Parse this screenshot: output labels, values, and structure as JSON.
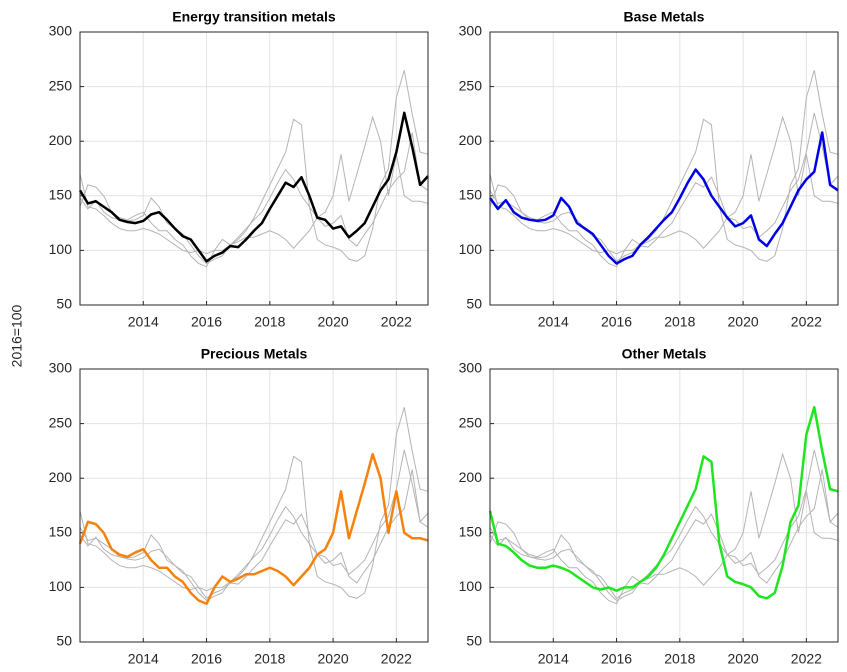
{
  "y_label": "2016=100",
  "chart_data": [
    {
      "type": "line",
      "title": "Energy transition metals",
      "color": "#000000",
      "x": [
        2012,
        2012.25,
        2012.5,
        2012.75,
        2013,
        2013.25,
        2013.5,
        2013.75,
        2014,
        2014.25,
        2014.5,
        2014.75,
        2015,
        2015.25,
        2015.5,
        2015.75,
        2016,
        2016.25,
        2016.5,
        2016.75,
        2017,
        2017.25,
        2017.5,
        2017.75,
        2018,
        2018.25,
        2018.5,
        2018.75,
        2019,
        2019.25,
        2019.5,
        2019.75,
        2020,
        2020.25,
        2020.5,
        2020.75,
        2021,
        2021.25,
        2021.5,
        2021.75,
        2022,
        2022.25,
        2022.5,
        2022.75,
        2023
      ],
      "values": [
        155,
        143,
        145,
        140,
        135,
        128,
        126,
        125,
        127,
        133,
        135,
        128,
        120,
        113,
        110,
        100,
        90,
        95,
        98,
        104,
        103,
        110,
        118,
        125,
        138,
        150,
        162,
        158,
        167,
        150,
        130,
        128,
        120,
        122,
        112,
        118,
        125,
        140,
        155,
        165,
        190,
        226,
        195,
        160,
        168
      ],
      "xlim": [
        2012,
        2023
      ],
      "xticks": [
        2014,
        2016,
        2018,
        2020,
        2022
      ],
      "ylim": [
        50,
        300
      ],
      "yticks": [
        50,
        100,
        150,
        200,
        250,
        300
      ],
      "grid": true
    },
    {
      "type": "line",
      "title": "Base Metals",
      "color": "#0000e6",
      "x": [
        2012,
        2012.25,
        2012.5,
        2012.75,
        2013,
        2013.25,
        2013.5,
        2013.75,
        2014,
        2014.25,
        2014.5,
        2014.75,
        2015,
        2015.25,
        2015.5,
        2015.75,
        2016,
        2016.25,
        2016.5,
        2016.75,
        2017,
        2017.25,
        2017.5,
        2017.75,
        2018,
        2018.25,
        2018.5,
        2018.75,
        2019,
        2019.25,
        2019.5,
        2019.75,
        2020,
        2020.25,
        2020.5,
        2020.75,
        2021,
        2021.25,
        2021.5,
        2021.75,
        2022,
        2022.25,
        2022.5,
        2022.75,
        2023
      ],
      "values": [
        148,
        138,
        146,
        135,
        130,
        128,
        127,
        128,
        132,
        148,
        140,
        125,
        120,
        115,
        105,
        95,
        88,
        92,
        95,
        105,
        112,
        120,
        128,
        135,
        148,
        162,
        174,
        165,
        150,
        140,
        130,
        122,
        125,
        132,
        110,
        104,
        115,
        125,
        140,
        155,
        165,
        172,
        208,
        160,
        155
      ],
      "xlim": [
        2012,
        2023
      ],
      "xticks": [
        2014,
        2016,
        2018,
        2020,
        2022
      ],
      "ylim": [
        50,
        300
      ],
      "yticks": [
        50,
        100,
        150,
        200,
        250,
        300
      ],
      "grid": true
    },
    {
      "type": "line",
      "title": "Precious Metals",
      "color": "#f5820d",
      "x": [
        2012,
        2012.25,
        2012.5,
        2012.75,
        2013,
        2013.25,
        2013.5,
        2013.75,
        2014,
        2014.25,
        2014.5,
        2014.75,
        2015,
        2015.25,
        2015.5,
        2015.75,
        2016,
        2016.25,
        2016.5,
        2016.75,
        2017,
        2017.25,
        2017.5,
        2017.75,
        2018,
        2018.25,
        2018.5,
        2018.75,
        2019,
        2019.25,
        2019.5,
        2019.75,
        2020,
        2020.25,
        2020.5,
        2020.75,
        2021,
        2021.25,
        2021.5,
        2021.75,
        2022,
        2022.25,
        2022.5,
        2022.75,
        2023
      ],
      "values": [
        140,
        160,
        158,
        150,
        135,
        130,
        128,
        132,
        135,
        125,
        118,
        118,
        110,
        105,
        95,
        88,
        85,
        100,
        110,
        105,
        108,
        112,
        112,
        115,
        118,
        115,
        110,
        102,
        110,
        118,
        130,
        135,
        150,
        188,
        145,
        170,
        195,
        222,
        200,
        150,
        188,
        150,
        145,
        145,
        143
      ],
      "xlim": [
        2012,
        2023
      ],
      "xticks": [
        2014,
        2016,
        2018,
        2020,
        2022
      ],
      "ylim": [
        50,
        300
      ],
      "yticks": [
        50,
        100,
        150,
        200,
        250,
        300
      ],
      "grid": true
    },
    {
      "type": "line",
      "title": "Other Metals",
      "color": "#1ee61e",
      "x": [
        2012,
        2012.25,
        2012.5,
        2012.75,
        2013,
        2013.25,
        2013.5,
        2013.75,
        2014,
        2014.25,
        2014.5,
        2014.75,
        2015,
        2015.25,
        2015.5,
        2015.75,
        2016,
        2016.25,
        2016.5,
        2016.75,
        2017,
        2017.25,
        2017.5,
        2017.75,
        2018,
        2018.25,
        2018.5,
        2018.75,
        2019,
        2019.25,
        2019.5,
        2019.75,
        2020,
        2020.25,
        2020.5,
        2020.75,
        2021,
        2021.25,
        2021.5,
        2021.75,
        2022,
        2022.25,
        2022.5,
        2022.75,
        2023
      ],
      "values": [
        170,
        140,
        138,
        132,
        125,
        120,
        118,
        118,
        120,
        118,
        115,
        110,
        105,
        100,
        98,
        100,
        97,
        100,
        100,
        105,
        110,
        118,
        130,
        145,
        160,
        175,
        190,
        220,
        215,
        140,
        110,
        105,
        103,
        100,
        92,
        90,
        95,
        120,
        160,
        175,
        240,
        265,
        225,
        190,
        188
      ],
      "xlim": [
        2012,
        2023
      ],
      "xticks": [
        2014,
        2016,
        2018,
        2020,
        2022
      ],
      "ylim": [
        50,
        300
      ],
      "yticks": [
        50,
        100,
        150,
        200,
        250,
        300
      ],
      "grid": true
    }
  ]
}
